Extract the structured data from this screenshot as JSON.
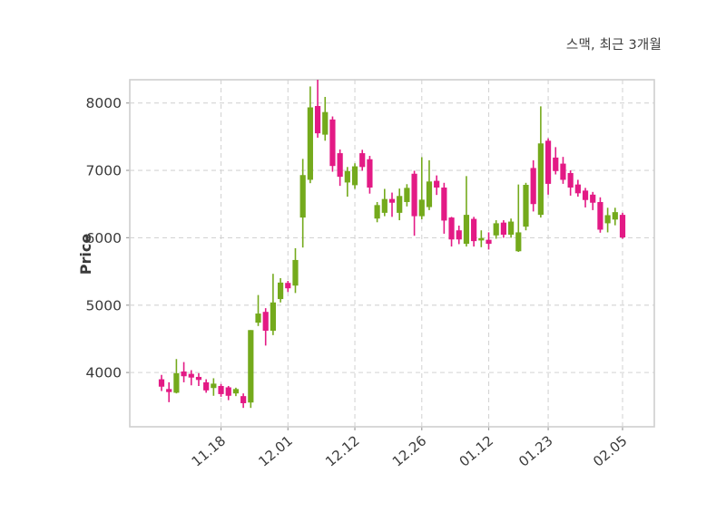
{
  "chart": {
    "title": "스맥, 최근 3개월",
    "ylabel": "Price"
  },
  "chart_data": {
    "type": "candlestick",
    "title": "스맥, 최근 3개월",
    "ylabel": "Price",
    "xlabel": "",
    "grid": true,
    "legend": "none",
    "ylim": [
      3195,
      8345
    ],
    "yticks": [
      4000,
      5000,
      6000,
      7000,
      8000
    ],
    "xticks": [
      {
        "index": 8,
        "label": "11.18"
      },
      {
        "index": 17,
        "label": "12.01"
      },
      {
        "index": 26,
        "label": "12.12"
      },
      {
        "index": 35,
        "label": "12.26"
      },
      {
        "index": 44,
        "label": "01.12"
      },
      {
        "index": 52,
        "label": "01.23"
      },
      {
        "index": 62,
        "label": "02.05"
      }
    ],
    "colors": {
      "up": "#74aa1c",
      "down": "#e31a85",
      "grid": "#d4d4d4",
      "border": "#cfcfcf",
      "tick_text": "#3a3a3a",
      "background": "#ffffff"
    },
    "candle_format": [
      "open",
      "high",
      "low",
      "close"
    ],
    "candles": [
      [
        3900,
        3965,
        3725,
        3790
      ],
      [
        3755,
        3855,
        3560,
        3710
      ],
      [
        3700,
        4200,
        3690,
        3990
      ],
      [
        4015,
        4155,
        3855,
        3945
      ],
      [
        3980,
        4035,
        3810,
        3925
      ],
      [
        3935,
        3990,
        3800,
        3890
      ],
      [
        3855,
        3900,
        3700,
        3735
      ],
      [
        3770,
        3915,
        3655,
        3835
      ],
      [
        3800,
        3830,
        3640,
        3680
      ],
      [
        3780,
        3800,
        3590,
        3655
      ],
      [
        3690,
        3775,
        3650,
        3755
      ],
      [
        3650,
        3690,
        3475,
        3545
      ],
      [
        3555,
        4630,
        3475,
        4630
      ],
      [
        4740,
        5150,
        4690,
        4875
      ],
      [
        4900,
        4955,
        4400,
        4620
      ],
      [
        4620,
        5465,
        4555,
        5040
      ],
      [
        5090,
        5400,
        5040,
        5335
      ],
      [
        5330,
        5360,
        5195,
        5250
      ],
      [
        5290,
        5845,
        5180,
        5670
      ],
      [
        6300,
        7170,
        5855,
        6930
      ],
      [
        6860,
        8245,
        6810,
        7935
      ],
      [
        7955,
        8345,
        7485,
        7550
      ],
      [
        7530,
        8090,
        7440,
        7865
      ],
      [
        7755,
        7800,
        6980,
        7065
      ],
      [
        7255,
        7310,
        6770,
        6905
      ],
      [
        6820,
        7050,
        6610,
        6990
      ],
      [
        6780,
        7105,
        6725,
        7060
      ],
      [
        7255,
        7305,
        6995,
        7050
      ],
      [
        7165,
        7215,
        6655,
        6745
      ],
      [
        6285,
        6530,
        6230,
        6485
      ],
      [
        6370,
        6725,
        6320,
        6575
      ],
      [
        6575,
        6670,
        6310,
        6520
      ],
      [
        6370,
        6730,
        6260,
        6620
      ],
      [
        6530,
        6795,
        6465,
        6740
      ],
      [
        6950,
        6995,
        6030,
        6320
      ],
      [
        6320,
        7195,
        6275,
        6565
      ],
      [
        6455,
        7150,
        6410,
        6835
      ],
      [
        6845,
        6925,
        6635,
        6745
      ],
      [
        6745,
        6815,
        6060,
        6255
      ],
      [
        6300,
        6310,
        5870,
        5975
      ],
      [
        6110,
        6180,
        5905,
        5975
      ],
      [
        5910,
        6915,
        5870,
        6340
      ],
      [
        6280,
        6310,
        5870,
        5950
      ],
      [
        5960,
        6110,
        5860,
        5995
      ],
      [
        5970,
        6080,
        5825,
        5910
      ],
      [
        6035,
        6260,
        5985,
        6215
      ],
      [
        6225,
        6260,
        6000,
        6045
      ],
      [
        6045,
        6285,
        6000,
        6240
      ],
      [
        5800,
        6790,
        5790,
        6080
      ],
      [
        6165,
        6815,
        6110,
        6785
      ],
      [
        7035,
        7150,
        6390,
        6500
      ],
      [
        6340,
        7950,
        6300,
        7400
      ],
      [
        7440,
        7475,
        6640,
        6800
      ],
      [
        7190,
        7345,
        6940,
        6990
      ],
      [
        7100,
        7200,
        6800,
        6860
      ],
      [
        6960,
        7000,
        6625,
        6745
      ],
      [
        6790,
        6860,
        6610,
        6660
      ],
      [
        6700,
        6740,
        6450,
        6560
      ],
      [
        6640,
        6680,
        6410,
        6520
      ],
      [
        6530,
        6600,
        6075,
        6120
      ],
      [
        6215,
        6445,
        6080,
        6335
      ],
      [
        6270,
        6445,
        6185,
        6380
      ],
      [
        6340,
        6370,
        5985,
        6005
      ]
    ]
  }
}
